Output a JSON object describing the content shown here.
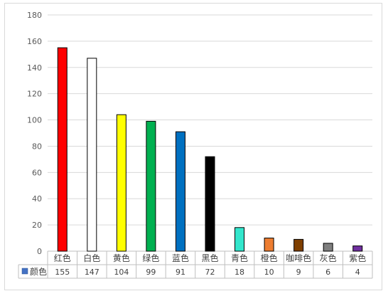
{
  "chart_data": {
    "type": "bar",
    "categories": [
      "红色",
      "白色",
      "黄色",
      "绿色",
      "蓝色",
      "黑色",
      "青色",
      "橙色",
      "咖啡色",
      "灰色",
      "紫色"
    ],
    "series": [
      {
        "name": "颜色",
        "values": [
          155,
          147,
          104,
          99,
          91,
          72,
          18,
          10,
          9,
          6,
          4
        ],
        "colors": [
          "#ff0000",
          "#ffffff",
          "#ffff00",
          "#00b050",
          "#0070c0",
          "#000000",
          "#33e6cc",
          "#ed7d31",
          "#7f3f00",
          "#7f7f7f",
          "#7030a0"
        ]
      }
    ],
    "ylim": [
      0,
      180
    ],
    "yticks": [
      0,
      20,
      40,
      60,
      80,
      100,
      120,
      140,
      160,
      180
    ],
    "grid": true,
    "legend": "data-table",
    "legend_key_color": "#4472c4"
  }
}
